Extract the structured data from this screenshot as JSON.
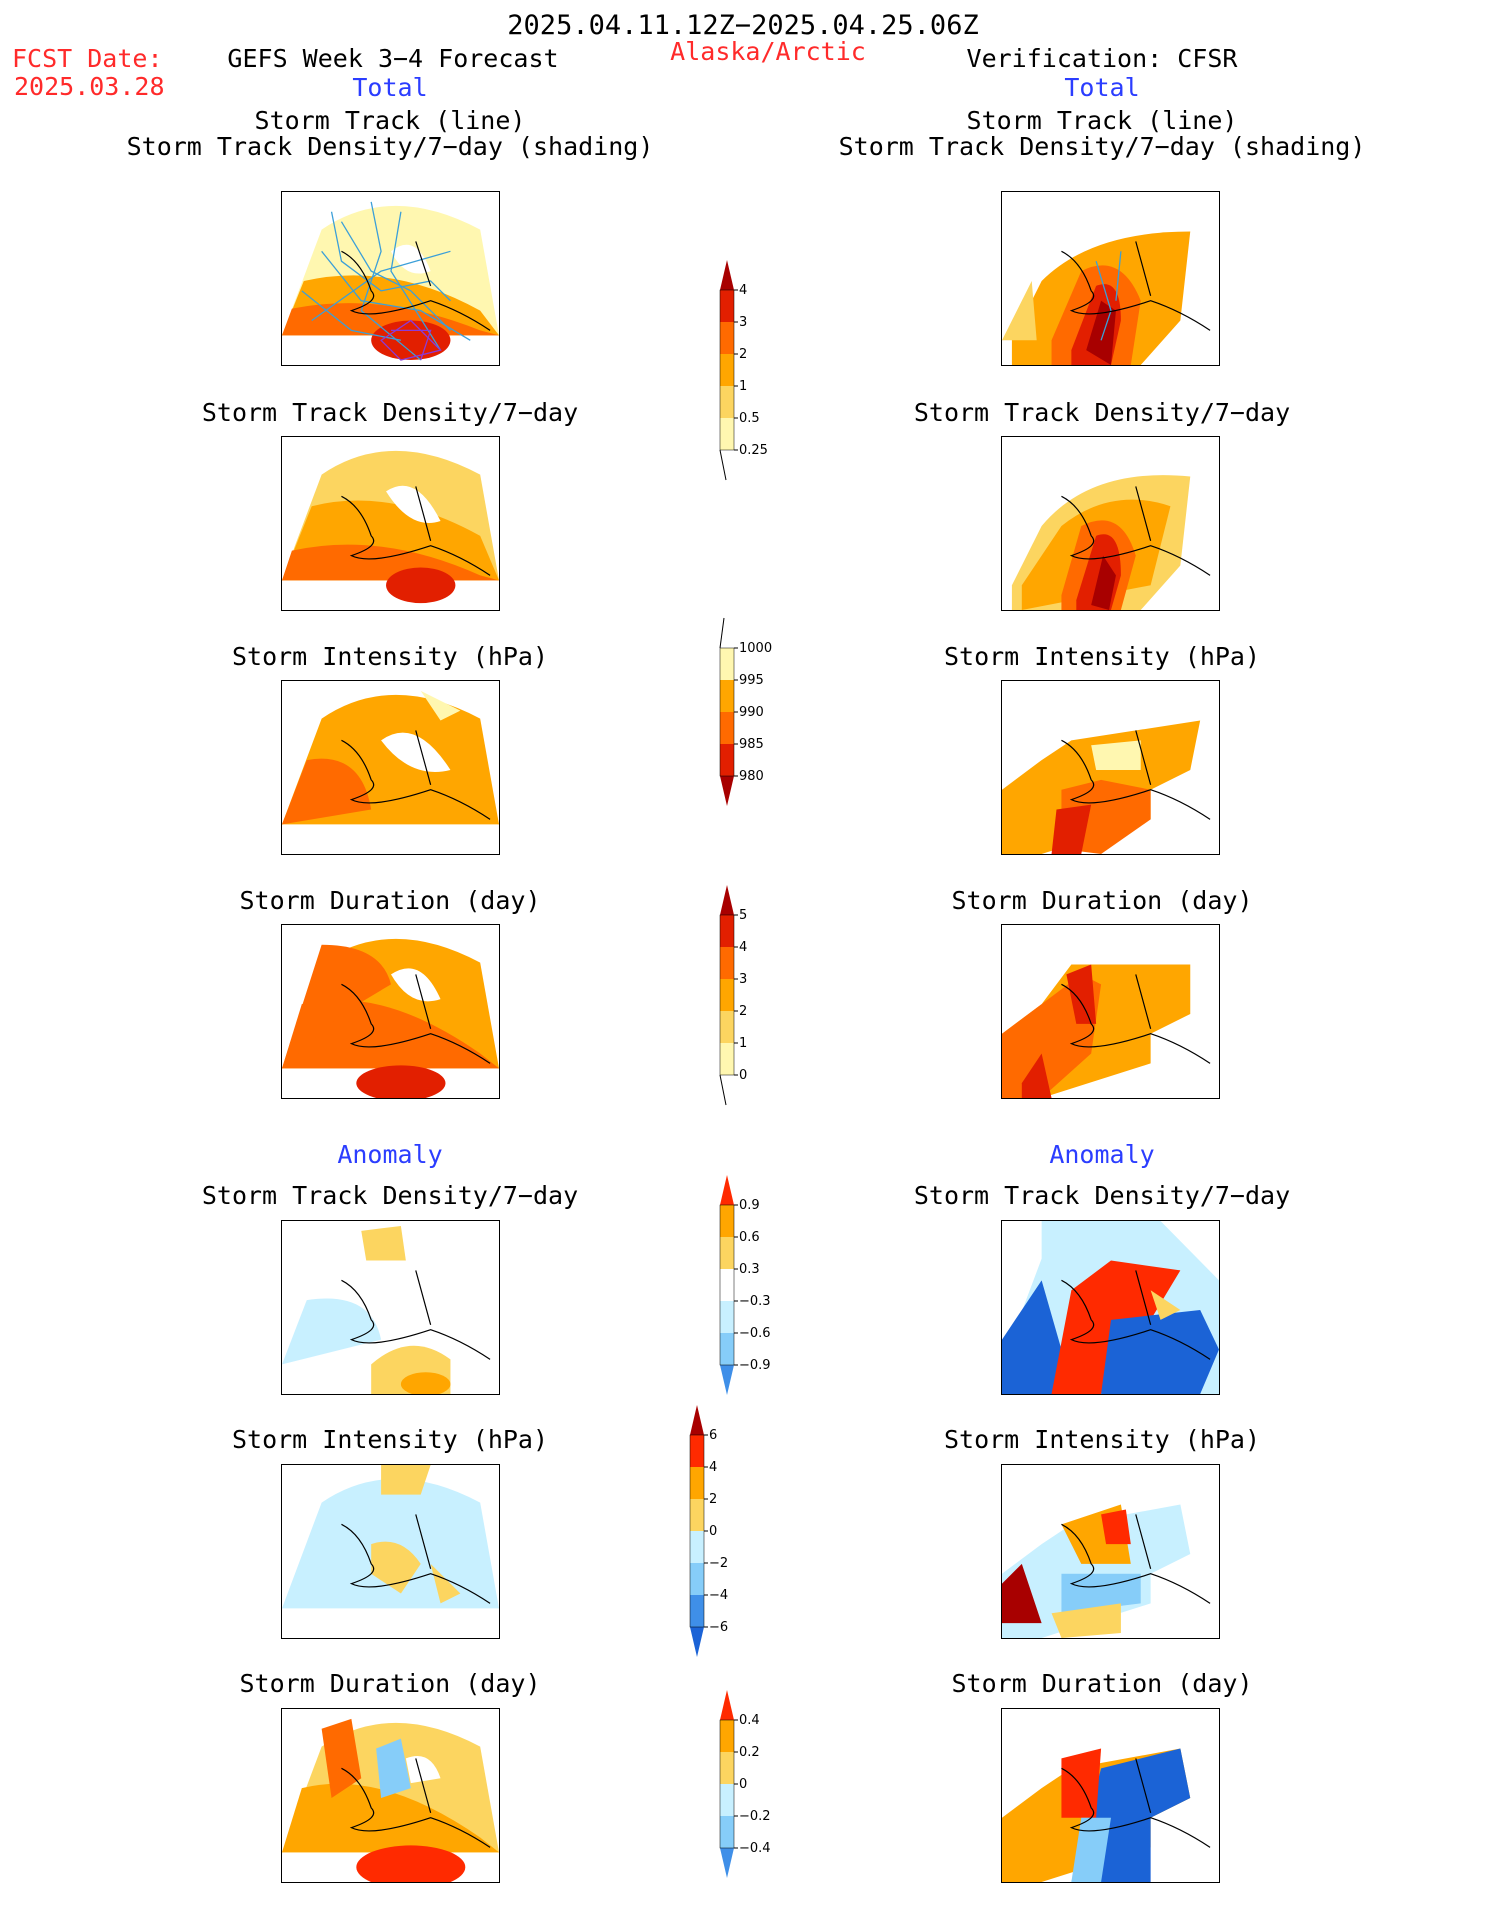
{
  "header": {
    "period": "2025.04.11.12Z−2025.04.25.06Z",
    "fcst_label": "FCST Date:",
    "fcst_date": "2025.03.28",
    "model_title": "GEFS Week 3−4 Forecast",
    "region": "Alaska/Arctic",
    "verification": "Verification: CFSR",
    "total_left": "Total",
    "total_right": "Total",
    "anomaly_left": "Anomaly",
    "anomaly_right": "Anomaly"
  },
  "titles": {
    "track_line": "Storm Track (line)",
    "track_shading": "Storm Track Density/7−day (shading)",
    "density": "Storm Track Density/7−day",
    "intensity": "Storm Intensity (hPa)",
    "duration": "Storm Duration (day)"
  },
  "colors": {
    "yellow_light": "#fff7b0",
    "yellow": "#fcd560",
    "orange_light": "#ffa600",
    "orange": "#ff6a00",
    "red": "#e21f00",
    "dark_red": "#a80000",
    "cyan_light": "#c8f0ff",
    "blue_light": "#86cdf9",
    "blue": "#3f8fe8",
    "blue_dark": "#1b63d6",
    "track_line": "#3b9fd8"
  },
  "chart_data": [
    {
      "type": "heatmap",
      "title": "Storm Track Density/7−day colorbar",
      "levels": [
        "0.25",
        "0.5",
        "1",
        "2",
        "3",
        "4"
      ],
      "colors": [
        "#fff7b0",
        "#fcd560",
        "#ffa600",
        "#ff6a00",
        "#e21f00",
        "#a80000"
      ]
    },
    {
      "type": "heatmap",
      "title": "Storm Intensity (hPa) colorbar",
      "levels": [
        "1000",
        "995",
        "990",
        "985",
        "980"
      ],
      "colors": [
        "#fff7b0",
        "#ffa600",
        "#ff6a00",
        "#e21f00",
        "#a80000"
      ]
    },
    {
      "type": "heatmap",
      "title": "Storm Duration (day) colorbar",
      "levels": [
        "0",
        "1",
        "2",
        "3",
        "4",
        "5"
      ],
      "colors": [
        "#fff7b0",
        "#fcd560",
        "#ffa600",
        "#ff6a00",
        "#e21f00",
        "#a80000"
      ]
    },
    {
      "type": "heatmap",
      "title": "Density Anomaly colorbar",
      "levels": [
        "0.9",
        "0.6",
        "0.3",
        "−0.3",
        "−0.6",
        "−0.9"
      ],
      "colors": [
        "#ff2a00",
        "#ffa600",
        "#fcd560",
        "#ffffff",
        "#c8f0ff",
        "#86cdf9",
        "#3f8fe8"
      ]
    },
    {
      "type": "heatmap",
      "title": "Intensity Anomaly colorbar",
      "levels": [
        "6",
        "4",
        "2",
        "0",
        "−2",
        "−4",
        "−6"
      ],
      "colors": [
        "#a80000",
        "#ff2a00",
        "#ffa600",
        "#fcd560",
        "#c8f0ff",
        "#86cdf9",
        "#3f8fe8",
        "#1b63d6"
      ]
    },
    {
      "type": "heatmap",
      "title": "Duration Anomaly colorbar",
      "levels": [
        "0.4",
        "0.2",
        "0",
        "−0.2",
        "−0.4"
      ],
      "colors": [
        "#ff2a00",
        "#ffa600",
        "#fcd560",
        "#c8f0ff",
        "#86cdf9",
        "#3f8fe8"
      ]
    }
  ]
}
